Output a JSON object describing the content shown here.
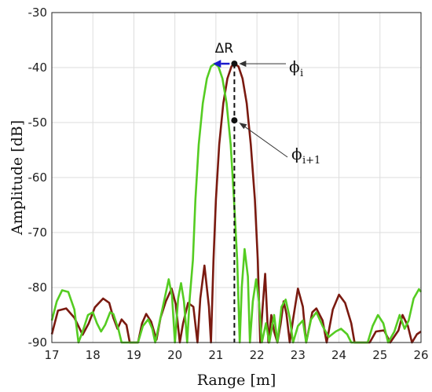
{
  "chart_data": {
    "type": "line",
    "title": "",
    "xlabel": "Range [m]",
    "ylabel": "Amplitude [dB]",
    "xlim": [
      17,
      26
    ],
    "ylim": [
      -90,
      -30
    ],
    "x_ticks": [
      17,
      18,
      19,
      20,
      21,
      22,
      23,
      24,
      25,
      26
    ],
    "y_ticks": [
      -90,
      -80,
      -70,
      -60,
      -50,
      -40,
      -30
    ],
    "grid": true,
    "legend": "none",
    "series": [
      {
        "color": "#7a1a10",
        "points": [
          [
            17.0,
            -88.5
          ],
          [
            17.15,
            -84.2
          ],
          [
            17.35,
            -83.8
          ],
          [
            17.55,
            -85.5
          ],
          [
            17.75,
            -88.6
          ],
          [
            17.9,
            -86.5
          ],
          [
            18.05,
            -83.6
          ],
          [
            18.25,
            -82.0
          ],
          [
            18.4,
            -82.8
          ],
          [
            18.5,
            -85.5
          ],
          [
            18.6,
            -87.5
          ],
          [
            18.7,
            -85.8
          ],
          [
            18.82,
            -86.8
          ],
          [
            18.9,
            -90
          ],
          [
            19.1,
            -90
          ],
          [
            19.2,
            -86.5
          ],
          [
            19.3,
            -84.8
          ],
          [
            19.42,
            -86.2
          ],
          [
            19.55,
            -89.5
          ],
          [
            19.65,
            -85.5
          ],
          [
            19.78,
            -82.5
          ],
          [
            19.92,
            -80.2
          ],
          [
            20.02,
            -83.0
          ],
          [
            20.12,
            -90
          ],
          [
            20.2,
            -86.5
          ],
          [
            20.32,
            -82.8
          ],
          [
            20.45,
            -83.5
          ],
          [
            20.55,
            -90
          ],
          [
            20.62,
            -82.0
          ],
          [
            20.72,
            -76.0
          ],
          [
            20.83,
            -83.5
          ],
          [
            20.88,
            -90
          ],
          [
            20.94,
            -75.0
          ],
          [
            21.0,
            -64.0
          ],
          [
            21.08,
            -54.0
          ],
          [
            21.18,
            -46.5
          ],
          [
            21.28,
            -42.0
          ],
          [
            21.38,
            -39.8
          ],
          [
            21.45,
            -39.3
          ],
          [
            21.55,
            -39.8
          ],
          [
            21.65,
            -42.0
          ],
          [
            21.75,
            -46.5
          ],
          [
            21.85,
            -54.0
          ],
          [
            21.95,
            -64.0
          ],
          [
            22.02,
            -75.0
          ],
          [
            22.08,
            -90
          ],
          [
            22.14,
            -83.5
          ],
          [
            22.2,
            -77.5
          ],
          [
            22.28,
            -90
          ],
          [
            22.35,
            -85.0
          ],
          [
            22.42,
            -88.0
          ],
          [
            22.5,
            -90
          ],
          [
            22.58,
            -86.5
          ],
          [
            22.65,
            -82.5
          ],
          [
            22.72,
            -84.8
          ],
          [
            22.8,
            -90
          ],
          [
            22.88,
            -85.8
          ],
          [
            23.0,
            -80.2
          ],
          [
            23.12,
            -83.5
          ],
          [
            23.2,
            -90
          ],
          [
            23.35,
            -84.5
          ],
          [
            23.45,
            -83.8
          ],
          [
            23.6,
            -86.0
          ],
          [
            23.7,
            -90
          ],
          [
            23.85,
            -84.0
          ],
          [
            24.0,
            -81.3
          ],
          [
            24.15,
            -82.8
          ],
          [
            24.3,
            -86.5
          ],
          [
            24.38,
            -90
          ],
          [
            24.5,
            -90
          ],
          [
            24.75,
            -90
          ],
          [
            24.9,
            -88.0
          ],
          [
            25.1,
            -87.8
          ],
          [
            25.25,
            -90
          ],
          [
            25.45,
            -87.8
          ],
          [
            25.55,
            -85.0
          ],
          [
            25.68,
            -87.0
          ],
          [
            25.78,
            -90
          ],
          [
            25.9,
            -88.5
          ],
          [
            26.0,
            -88.0
          ]
        ]
      },
      {
        "color": "#55cc22",
        "points": [
          [
            17.0,
            -86.0
          ],
          [
            17.12,
            -82.5
          ],
          [
            17.25,
            -80.5
          ],
          [
            17.4,
            -80.8
          ],
          [
            17.55,
            -84.0
          ],
          [
            17.65,
            -90
          ],
          [
            17.75,
            -88.0
          ],
          [
            17.88,
            -85.0
          ],
          [
            18.0,
            -84.5
          ],
          [
            18.1,
            -86.5
          ],
          [
            18.2,
            -88.0
          ],
          [
            18.3,
            -86.8
          ],
          [
            18.42,
            -84.5
          ],
          [
            18.5,
            -84.8
          ],
          [
            18.62,
            -87.5
          ],
          [
            18.7,
            -90
          ],
          [
            18.9,
            -90
          ],
          [
            19.1,
            -90
          ],
          [
            19.22,
            -87.0
          ],
          [
            19.35,
            -85.8
          ],
          [
            19.45,
            -87.5
          ],
          [
            19.52,
            -90
          ],
          [
            19.62,
            -86.5
          ],
          [
            19.75,
            -82.0
          ],
          [
            19.85,
            -78.5
          ],
          [
            19.93,
            -81.5
          ],
          [
            20.0,
            -90
          ],
          [
            20.08,
            -82.0
          ],
          [
            20.15,
            -79.2
          ],
          [
            20.22,
            -82.5
          ],
          [
            20.3,
            -90
          ],
          [
            20.36,
            -82.0
          ],
          [
            20.44,
            -75.0
          ],
          [
            20.5,
            -64.0
          ],
          [
            20.58,
            -54.0
          ],
          [
            20.68,
            -46.5
          ],
          [
            20.78,
            -42.0
          ],
          [
            20.88,
            -39.8
          ],
          [
            20.97,
            -39.3
          ],
          [
            21.06,
            -39.8
          ],
          [
            21.16,
            -42.0
          ],
          [
            21.26,
            -46.5
          ],
          [
            21.36,
            -54.0
          ],
          [
            21.44,
            -64.0
          ],
          [
            21.52,
            -75.0
          ],
          [
            21.58,
            -90
          ],
          [
            21.63,
            -80.0
          ],
          [
            21.7,
            -73.0
          ],
          [
            21.78,
            -78.0
          ],
          [
            21.83,
            -90
          ],
          [
            21.9,
            -82.5
          ],
          [
            21.98,
            -78.5
          ],
          [
            22.05,
            -82.5
          ],
          [
            22.12,
            -90
          ],
          [
            22.22,
            -86.5
          ],
          [
            22.3,
            -90
          ],
          [
            22.42,
            -85.0
          ],
          [
            22.5,
            -90
          ],
          [
            22.6,
            -83.5
          ],
          [
            22.7,
            -82.2
          ],
          [
            22.8,
            -85.5
          ],
          [
            22.88,
            -90
          ],
          [
            23.0,
            -87.0
          ],
          [
            23.12,
            -86.0
          ],
          [
            23.2,
            -90
          ],
          [
            23.32,
            -85.8
          ],
          [
            23.45,
            -84.5
          ],
          [
            23.6,
            -87.0
          ],
          [
            23.75,
            -89.0
          ],
          [
            23.92,
            -88.0
          ],
          [
            24.05,
            -87.5
          ],
          [
            24.2,
            -88.5
          ],
          [
            24.3,
            -90
          ],
          [
            24.45,
            -90
          ],
          [
            24.7,
            -90
          ],
          [
            24.82,
            -87.0
          ],
          [
            24.95,
            -85.0
          ],
          [
            25.08,
            -86.5
          ],
          [
            25.2,
            -90
          ],
          [
            25.35,
            -88.0
          ],
          [
            25.48,
            -85.0
          ],
          [
            25.6,
            -87.5
          ],
          [
            25.7,
            -86.0
          ],
          [
            25.82,
            -82.0
          ],
          [
            25.95,
            -80.3
          ],
          [
            26.0,
            -80.8
          ]
        ]
      }
    ],
    "annotations": {
      "delta_r": "ΔR",
      "phi_i": "ϕ",
      "phi_i_sub": "i",
      "phi_i1": "ϕ",
      "phi_i1_sub": "i+1"
    }
  }
}
